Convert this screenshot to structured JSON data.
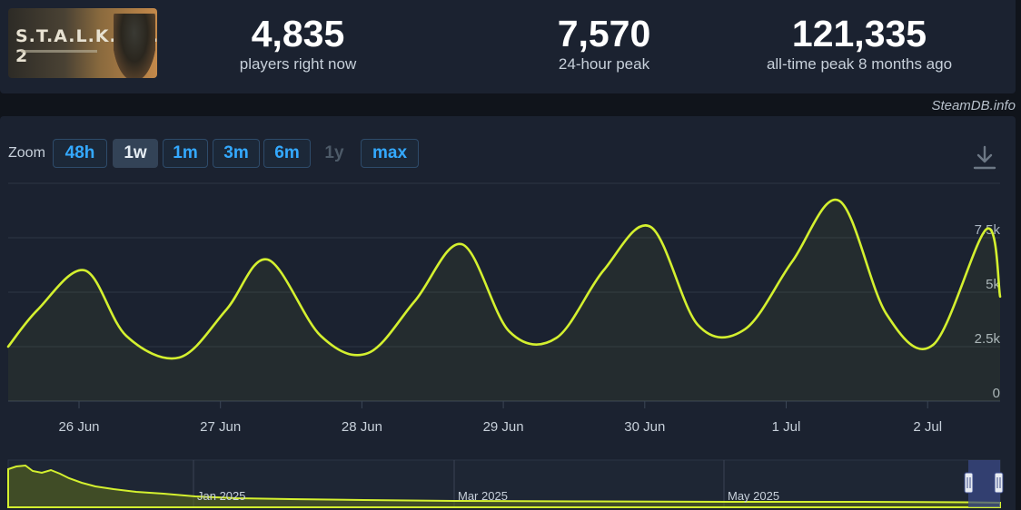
{
  "stats": {
    "players_now": {
      "value": "4,835",
      "label": "players right now"
    },
    "peak_24h": {
      "value": "7,570",
      "label": "24-hour peak"
    },
    "all_time": {
      "value": "121,335",
      "label": "all-time peak 8 months ago"
    }
  },
  "game": {
    "cover_text": "S.T.A.L.K.E.R. 2"
  },
  "credit": "SteamDB.info",
  "zoom": {
    "label": "Zoom",
    "buttons": [
      "48h",
      "1w",
      "1m",
      "3m",
      "6m",
      "1y",
      "max"
    ],
    "active": "1w",
    "disabled": [
      "1y"
    ]
  },
  "icons": {
    "download": "download-icon"
  },
  "colors": {
    "line": "#d4f02f",
    "accent": "#34a9ff"
  },
  "chart_data": [
    {
      "type": "line",
      "series": [
        {
          "x": [
            "2025-06-25 12:00",
            "2025-06-25 17:00",
            "2025-06-26 01:00",
            "2025-06-26 08:00",
            "2025-06-26 17:00",
            "2025-06-27 01:00",
            "2025-06-27 08:00",
            "2025-06-27 17:00",
            "2025-06-28 01:00",
            "2025-06-28 09:00",
            "2025-06-28 17:00",
            "2025-06-29 01:00",
            "2025-06-29 09:00",
            "2025-06-29 17:00",
            "2025-06-30 01:00",
            "2025-06-30 09:00",
            "2025-06-30 17:00",
            "2025-07-01 01:00",
            "2025-07-01 09:00",
            "2025-07-01 17:00",
            "2025-07-02 01:00",
            "2025-07-02 10:00",
            "2025-07-02 17:00"
          ],
          "y": [
            2500,
            4200,
            6000,
            3000,
            2000,
            4200,
            6500,
            3000,
            2200,
            4600,
            7200,
            3200,
            2900,
            6000,
            8000,
            3500,
            3300,
            6400,
            9200,
            4000,
            2600,
            7900,
            4800
          ]
        }
      ],
      "yticks": [
        "0",
        "2.5k",
        "5k",
        "7.5k"
      ],
      "xticks": [
        "26 Jun",
        "27 Jun",
        "28 Jun",
        "29 Jun",
        "30 Jun",
        "1 Jul",
        "2 Jul"
      ],
      "ylim": [
        0,
        10000
      ],
      "grid": true
    },
    {
      "type": "area",
      "role": "navigator",
      "xticks": [
        "Jan 2025",
        "Mar 2025",
        "May 2025"
      ]
    }
  ]
}
